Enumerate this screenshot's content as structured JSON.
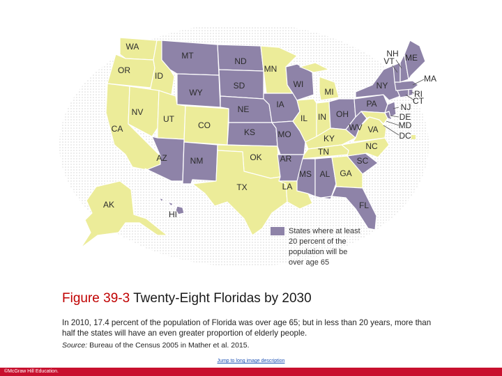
{
  "colors": {
    "older": "#8e83a8",
    "younger": "#ecec99",
    "border": "#ffffff",
    "water_dots": "#d6d6d6",
    "accent_red": "#c00000",
    "footer_red": "#c8102e"
  },
  "map": {
    "states": [
      {
        "abbr": "WA",
        "group": "younger"
      },
      {
        "abbr": "OR",
        "group": "younger"
      },
      {
        "abbr": "CA",
        "group": "younger"
      },
      {
        "abbr": "ID",
        "group": "younger"
      },
      {
        "abbr": "NV",
        "group": "younger"
      },
      {
        "abbr": "UT",
        "group": "younger"
      },
      {
        "abbr": "CO",
        "group": "younger"
      },
      {
        "abbr": "MT",
        "group": "older"
      },
      {
        "abbr": "WY",
        "group": "older"
      },
      {
        "abbr": "ND",
        "group": "older"
      },
      {
        "abbr": "SD",
        "group": "older"
      },
      {
        "abbr": "NE",
        "group": "older"
      },
      {
        "abbr": "KS",
        "group": "older"
      },
      {
        "abbr": "AZ",
        "group": "older"
      },
      {
        "abbr": "NM",
        "group": "older"
      },
      {
        "abbr": "OK",
        "group": "younger"
      },
      {
        "abbr": "TX",
        "group": "younger"
      },
      {
        "abbr": "MN",
        "group": "younger"
      },
      {
        "abbr": "IA",
        "group": "older"
      },
      {
        "abbr": "MO",
        "group": "older"
      },
      {
        "abbr": "AR",
        "group": "older"
      },
      {
        "abbr": "LA",
        "group": "younger"
      },
      {
        "abbr": "WI",
        "group": "older"
      },
      {
        "abbr": "IL",
        "group": "younger"
      },
      {
        "abbr": "MI",
        "group": "younger"
      },
      {
        "abbr": "IN",
        "group": "younger"
      },
      {
        "abbr": "OH",
        "group": "older"
      },
      {
        "abbr": "KY",
        "group": "younger"
      },
      {
        "abbr": "TN",
        "group": "younger"
      },
      {
        "abbr": "MS",
        "group": "older"
      },
      {
        "abbr": "AL",
        "group": "older"
      },
      {
        "abbr": "GA",
        "group": "younger"
      },
      {
        "abbr": "FL",
        "group": "older"
      },
      {
        "abbr": "SC",
        "group": "older"
      },
      {
        "abbr": "NC",
        "group": "younger"
      },
      {
        "abbr": "VA",
        "group": "younger"
      },
      {
        "abbr": "WV",
        "group": "older"
      },
      {
        "abbr": "PA",
        "group": "older"
      },
      {
        "abbr": "NY",
        "group": "older"
      },
      {
        "abbr": "VT",
        "group": "older"
      },
      {
        "abbr": "NH",
        "group": "older"
      },
      {
        "abbr": "ME",
        "group": "older"
      },
      {
        "abbr": "MA",
        "group": "older"
      },
      {
        "abbr": "RI",
        "group": "older"
      },
      {
        "abbr": "CT",
        "group": "older"
      },
      {
        "abbr": "NJ",
        "group": "older"
      },
      {
        "abbr": "DE",
        "group": "older"
      },
      {
        "abbr": "MD",
        "group": "younger"
      },
      {
        "abbr": "DC",
        "group": "younger"
      },
      {
        "abbr": "AK",
        "group": "younger"
      },
      {
        "abbr": "HI",
        "group": "older"
      }
    ],
    "legend": {
      "lines": [
        "States where at least",
        "20 percent of the",
        "population will be",
        "over age 65"
      ]
    }
  },
  "caption": {
    "figure_number": "Figure 39-3",
    "figure_title": "Twenty-Eight Floridas by 2030",
    "body": "In 2010, 17.4 percent of the population of Florida was over age 65; but in less than 20 years, more than half the states will have an even greater proportion of elderly people.",
    "source_label": "Source:",
    "source_text": "Bureau of the Census 2005 in Mather et al. 2015."
  },
  "link": {
    "text": "Jump to long image description"
  },
  "footer": {
    "copyright": "©McGraw Hill Education."
  }
}
